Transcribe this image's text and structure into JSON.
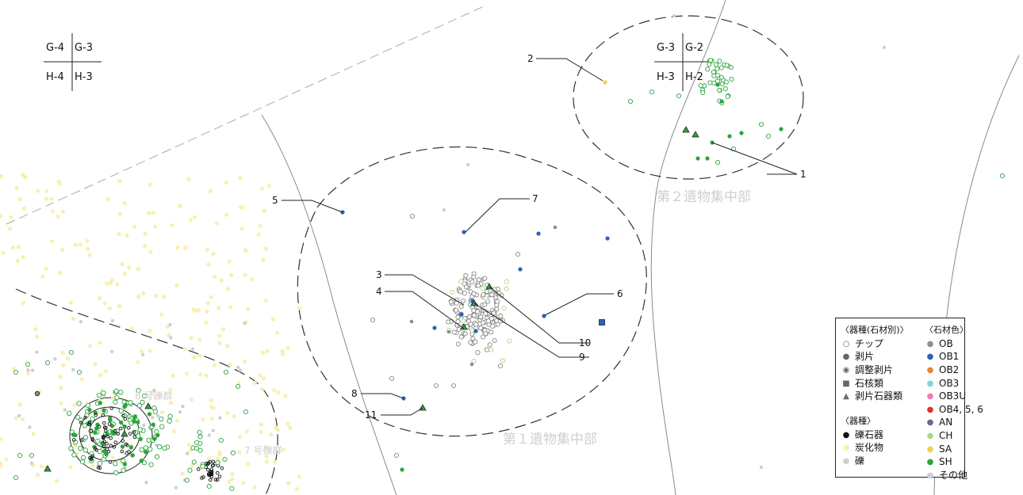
{
  "grid_left": {
    "tl": "G-4",
    "tr": "G-3",
    "bl": "H-4",
    "br": "H-3"
  },
  "grid_right": {
    "tl": "G-3",
    "tr": "G-2",
    "bl": "H-3",
    "br": "H-2"
  },
  "zone_labels": {
    "zone1": "第１遺物集中部",
    "zone2": "第２遺物集中部",
    "gravel8": "8 号礫群",
    "gravel7": "7 号礫群"
  },
  "callouts": [
    "1",
    "2",
    "3",
    "4",
    "5",
    "6",
    "7",
    "8",
    "9",
    "10",
    "11"
  ],
  "legend": {
    "artifact_header": "〈器種(石材別)〉",
    "artifact_items": [
      {
        "symbol": "○",
        "label": "チップ"
      },
      {
        "symbol": "●",
        "label": "剥片"
      },
      {
        "symbol": "◉",
        "label": "調整剥片"
      },
      {
        "symbol": "■",
        "label": "石核類"
      },
      {
        "symbol": "▲",
        "label": "剥片石器類"
      }
    ],
    "type_header": "〈器種〉",
    "type_items": [
      {
        "symbol": "●",
        "label": "礫石器",
        "color": "#111111"
      },
      {
        "symbol": "●",
        "label": "炭化物",
        "color": "#f7f0b0"
      },
      {
        "symbol": "●",
        "label": "礫",
        "color": "#d0d0d0"
      }
    ],
    "material_header": "〈石材色〉",
    "material_items": [
      {
        "label": "OB",
        "color": "#8e8e8e"
      },
      {
        "label": "OB1",
        "color": "#2d62b8"
      },
      {
        "label": "OB2",
        "color": "#e8853a"
      },
      {
        "label": "OB3",
        "color": "#7fd3e8"
      },
      {
        "label": "OB3U",
        "color": "#f07ab4"
      },
      {
        "label": "OB4, 5, 6",
        "color": "#e03030"
      },
      {
        "label": "AN",
        "color": "#6a6a90"
      },
      {
        "label": "CH",
        "color": "#a8d88a"
      },
      {
        "label": "SA",
        "color": "#f2cf5a"
      },
      {
        "label": "SH",
        "color": "#2aa63c"
      },
      {
        "label": "その他",
        "color": "#cfcfcf"
      }
    ]
  },
  "colors": {
    "OB": "#8e8e8e",
    "OB1": "#2d62b8",
    "CH": "#a8d88a",
    "SA": "#f2cf5a",
    "SH": "#2aa63c",
    "other": "#cfcfcf",
    "charcoal": "#f7f0b0",
    "zone_label": "#cfcfcf"
  }
}
